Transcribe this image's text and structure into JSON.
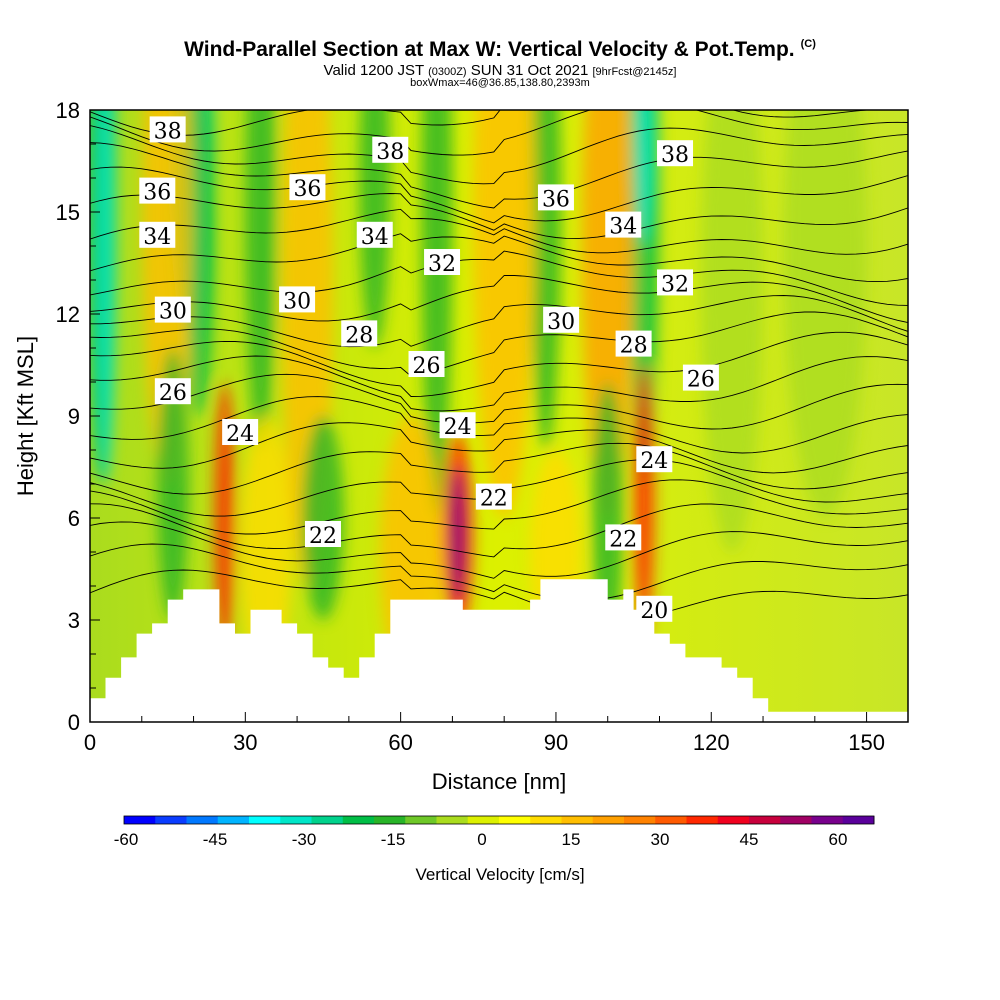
{
  "title": {
    "main": "Wind-Parallel Section at Max W: Vertical Velocity & Pot.Temp.",
    "copyright": "(C)",
    "valid_prefix": "Valid 1200 JST",
    "valid_utc": "(0300Z)",
    "valid_date": "SUN 31 Oct 2021",
    "forecast": "[9hrFcst@2145z]",
    "box_info": "boxWmax=46@36.85,138.80,2393m"
  },
  "chart_data": {
    "type": "heatmap",
    "xlabel": "Distance [nm]",
    "ylabel": "Height [Kft MSL]",
    "xlim": [
      0,
      158
    ],
    "ylim": [
      0,
      18
    ],
    "x_ticks": [
      0,
      30,
      60,
      90,
      120,
      150
    ],
    "y_ticks": [
      0,
      3,
      6,
      9,
      12,
      15,
      18
    ],
    "colorbar": {
      "label": "Vertical Velocity [cm/s]",
      "ticks": [
        -60,
        -45,
        -30,
        -15,
        0,
        15,
        30,
        45,
        60
      ],
      "colors": [
        "#0000ff",
        "#0a3cff",
        "#0078ff",
        "#00b4ff",
        "#00ffff",
        "#00e6c8",
        "#00d28c",
        "#00be46",
        "#28b428",
        "#6ec828",
        "#aadc1e",
        "#dcf000",
        "#ffff00",
        "#ffdc00",
        "#ffbe00",
        "#ffa000",
        "#ff8200",
        "#ff5a00",
        "#ff2800",
        "#f0001e",
        "#c8003c",
        "#a00064",
        "#78008c",
        "#5a009b"
      ]
    },
    "terrain": [
      [
        0,
        0.7
      ],
      [
        3,
        0.7
      ],
      [
        3,
        1.3
      ],
      [
        6,
        1.3
      ],
      [
        6,
        1.9
      ],
      [
        9,
        1.9
      ],
      [
        9,
        2.6
      ],
      [
        12,
        2.6
      ],
      [
        12,
        2.9
      ],
      [
        15,
        2.9
      ],
      [
        15,
        3.6
      ],
      [
        18,
        3.6
      ],
      [
        18,
        3.9
      ],
      [
        25,
        3.9
      ],
      [
        25,
        2.9
      ],
      [
        28,
        2.9
      ],
      [
        28,
        2.6
      ],
      [
        31,
        2.6
      ],
      [
        31,
        3.3
      ],
      [
        37,
        3.3
      ],
      [
        37,
        2.9
      ],
      [
        40,
        2.9
      ],
      [
        40,
        2.6
      ],
      [
        43,
        2.6
      ],
      [
        43,
        1.9
      ],
      [
        46,
        1.9
      ],
      [
        46,
        1.6
      ],
      [
        49,
        1.6
      ],
      [
        49,
        1.3
      ],
      [
        52,
        1.3
      ],
      [
        52,
        1.9
      ],
      [
        55,
        1.9
      ],
      [
        55,
        2.6
      ],
      [
        58,
        2.6
      ],
      [
        58,
        3.6
      ],
      [
        68,
        3.6
      ],
      [
        68,
        3.6
      ],
      [
        72,
        3.6
      ],
      [
        72,
        3.3
      ],
      [
        85,
        3.3
      ],
      [
        85,
        3.6
      ],
      [
        87,
        3.6
      ],
      [
        87,
        4.2
      ],
      [
        100,
        4.2
      ],
      [
        100,
        3.6
      ],
      [
        103,
        3.6
      ],
      [
        103,
        3.9
      ],
      [
        105,
        3.9
      ],
      [
        105,
        3.3
      ],
      [
        109,
        3.3
      ],
      [
        109,
        2.6
      ],
      [
        112,
        2.6
      ],
      [
        112,
        2.3
      ],
      [
        115,
        2.3
      ],
      [
        115,
        1.9
      ],
      [
        122,
        1.9
      ],
      [
        122,
        1.6
      ],
      [
        125,
        1.6
      ],
      [
        125,
        1.3
      ],
      [
        128,
        1.3
      ],
      [
        128,
        0.7
      ],
      [
        131,
        0.7
      ],
      [
        131,
        0.3
      ],
      [
        158,
        0.3
      ]
    ],
    "contour_labels": [
      {
        "text": "38",
        "x": 15,
        "y": 17.4
      },
      {
        "text": "38",
        "x": 58,
        "y": 16.8
      },
      {
        "text": "38",
        "x": 113,
        "y": 16.7
      },
      {
        "text": "36",
        "x": 13,
        "y": 15.6
      },
      {
        "text": "36",
        "x": 42,
        "y": 15.7
      },
      {
        "text": "36",
        "x": 90,
        "y": 15.4
      },
      {
        "text": "34",
        "x": 13,
        "y": 14.3
      },
      {
        "text": "34",
        "x": 55,
        "y": 14.3
      },
      {
        "text": "34",
        "x": 103,
        "y": 14.6
      },
      {
        "text": "32",
        "x": 68,
        "y": 13.5
      },
      {
        "text": "32",
        "x": 113,
        "y": 12.9
      },
      {
        "text": "30",
        "x": 16,
        "y": 12.1
      },
      {
        "text": "30",
        "x": 40,
        "y": 12.4
      },
      {
        "text": "30",
        "x": 91,
        "y": 11.8
      },
      {
        "text": "28",
        "x": 52,
        "y": 11.4
      },
      {
        "text": "28",
        "x": 105,
        "y": 11.1
      },
      {
        "text": "26",
        "x": 16,
        "y": 9.7
      },
      {
        "text": "26",
        "x": 65,
        "y": 10.5
      },
      {
        "text": "26",
        "x": 118,
        "y": 10.1
      },
      {
        "text": "24",
        "x": 29,
        "y": 8.5
      },
      {
        "text": "24",
        "x": 71,
        "y": 8.7
      },
      {
        "text": "24",
        "x": 109,
        "y": 7.7
      },
      {
        "text": "22",
        "x": 45,
        "y": 5.5
      },
      {
        "text": "22",
        "x": 78,
        "y": 6.6
      },
      {
        "text": "22",
        "x": 103,
        "y": 5.4
      },
      {
        "text": "20",
        "x": 109,
        "y": 3.3
      }
    ]
  }
}
